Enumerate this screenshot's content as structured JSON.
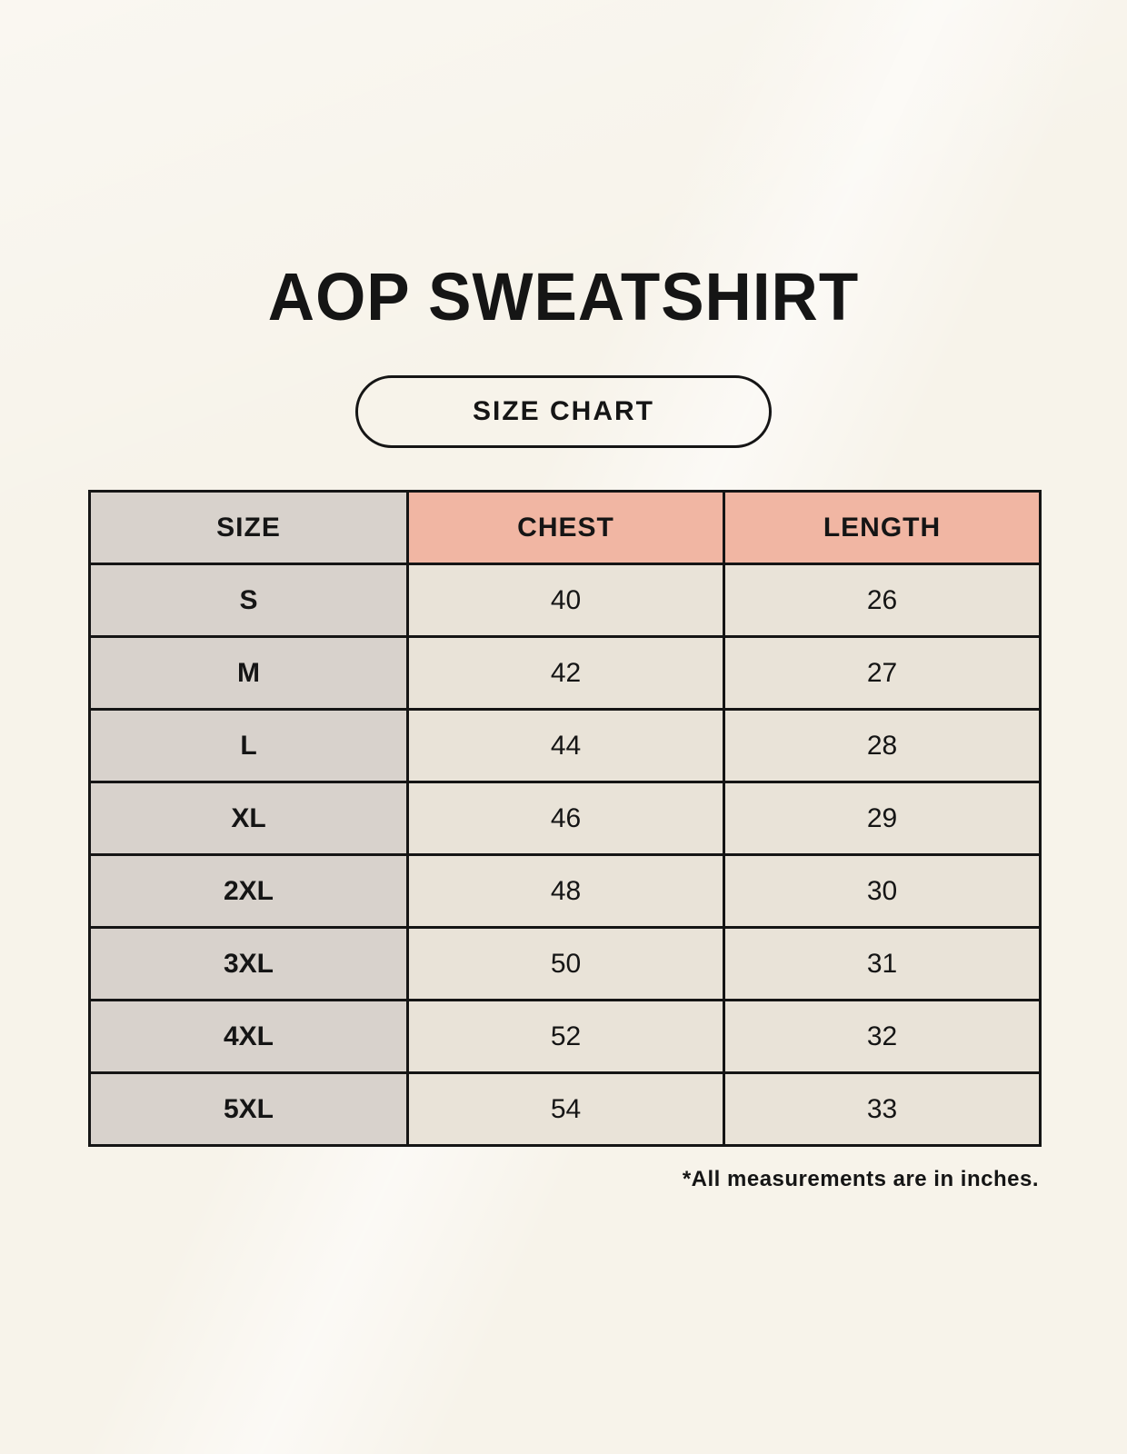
{
  "title": "AOP SWEATSHIRT",
  "size_chart_label": "SIZE CHART",
  "footnote": "*All measurements are in inches.",
  "colors": {
    "background": "#f7f3ea",
    "border": "#151515",
    "text": "#151515",
    "size_column_bg": "#d8d2cc",
    "measure_header_bg": "#f1b6a3",
    "value_cell_bg": "#e9e3d8"
  },
  "chart_data": {
    "type": "table",
    "title": "AOP SWEATSHIRT",
    "subtitle": "SIZE CHART",
    "columns": [
      "SIZE",
      "CHEST",
      "LENGTH"
    ],
    "rows": [
      [
        "S",
        "40",
        "26"
      ],
      [
        "M",
        "42",
        "27"
      ],
      [
        "L",
        "44",
        "28"
      ],
      [
        "XL",
        "46",
        "29"
      ],
      [
        "2XL",
        "48",
        "30"
      ],
      [
        "3XL",
        "50",
        "31"
      ],
      [
        "4XL",
        "52",
        "32"
      ],
      [
        "5XL",
        "54",
        "33"
      ]
    ],
    "units": "inches",
    "note": "*All measurements are in inches."
  }
}
